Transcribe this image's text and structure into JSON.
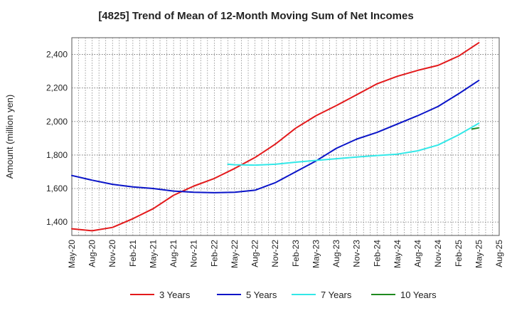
{
  "chart_data": {
    "type": "line",
    "title": "[4825]  Trend of Mean of 12-Month Moving Sum of Net Incomes",
    "xlabel": "",
    "ylabel": "Amount (million yen)",
    "ylim": [
      1320,
      2500
    ],
    "yticks": [
      1400,
      1600,
      1800,
      2000,
      2200,
      2400
    ],
    "ytick_labels": [
      "1,400",
      "1,600",
      "1,800",
      "2,000",
      "2,200",
      "2,400"
    ],
    "xlim": [
      "2020-05",
      "2025-08"
    ],
    "xticks": [
      "2020-05",
      "2020-08",
      "2020-11",
      "2021-02",
      "2021-05",
      "2021-08",
      "2021-11",
      "2022-02",
      "2022-05",
      "2022-08",
      "2022-11",
      "2023-02",
      "2023-05",
      "2023-08",
      "2023-11",
      "2024-02",
      "2024-05",
      "2024-08",
      "2024-11",
      "2025-02",
      "2025-05",
      "2025-08"
    ],
    "xtick_labels": [
      "May-20",
      "Aug-20",
      "Nov-20",
      "Feb-21",
      "May-21",
      "Aug-21",
      "Nov-21",
      "Feb-22",
      "May-22",
      "Aug-22",
      "Nov-22",
      "Feb-23",
      "May-23",
      "Aug-23",
      "Nov-23",
      "Feb-24",
      "May-24",
      "Aug-24",
      "Nov-24",
      "Feb-25",
      "May-25",
      "Aug-25"
    ],
    "grid": true,
    "legend_position": "bottom",
    "series": [
      {
        "name": "3 Years",
        "color": "#e31a1c",
        "points": [
          [
            "2020-05",
            1360
          ],
          [
            "2020-08",
            1348
          ],
          [
            "2020-11",
            1368
          ],
          [
            "2021-02",
            1420
          ],
          [
            "2021-05",
            1480
          ],
          [
            "2021-08",
            1560
          ],
          [
            "2021-11",
            1615
          ],
          [
            "2022-02",
            1660
          ],
          [
            "2022-05",
            1720
          ],
          [
            "2022-08",
            1785
          ],
          [
            "2022-11",
            1865
          ],
          [
            "2023-02",
            1960
          ],
          [
            "2023-05",
            2035
          ],
          [
            "2023-08",
            2095
          ],
          [
            "2023-11",
            2160
          ],
          [
            "2024-02",
            2225
          ],
          [
            "2024-05",
            2270
          ],
          [
            "2024-08",
            2305
          ],
          [
            "2024-11",
            2335
          ],
          [
            "2025-02",
            2390
          ],
          [
            "2025-05",
            2470
          ]
        ]
      },
      {
        "name": "5 Years",
        "color": "#0a14c8",
        "points": [
          [
            "2020-05",
            1678
          ],
          [
            "2020-08",
            1650
          ],
          [
            "2020-11",
            1625
          ],
          [
            "2021-02",
            1610
          ],
          [
            "2021-05",
            1600
          ],
          [
            "2021-08",
            1585
          ],
          [
            "2021-11",
            1578
          ],
          [
            "2022-02",
            1575
          ],
          [
            "2022-05",
            1578
          ],
          [
            "2022-08",
            1590
          ],
          [
            "2022-11",
            1635
          ],
          [
            "2023-02",
            1700
          ],
          [
            "2023-05",
            1765
          ],
          [
            "2023-08",
            1840
          ],
          [
            "2023-11",
            1895
          ],
          [
            "2024-02",
            1935
          ],
          [
            "2024-05",
            1985
          ],
          [
            "2024-08",
            2035
          ],
          [
            "2024-11",
            2090
          ],
          [
            "2025-02",
            2165
          ],
          [
            "2025-05",
            2245
          ]
        ]
      },
      {
        "name": "7 Years",
        "color": "#33e8e8",
        "points": [
          [
            "2022-04",
            1745
          ],
          [
            "2022-05",
            1742
          ],
          [
            "2022-08",
            1740
          ],
          [
            "2022-11",
            1745
          ],
          [
            "2023-02",
            1757
          ],
          [
            "2023-05",
            1768
          ],
          [
            "2023-08",
            1778
          ],
          [
            "2023-11",
            1788
          ],
          [
            "2024-02",
            1797
          ],
          [
            "2024-05",
            1805
          ],
          [
            "2024-08",
            1825
          ],
          [
            "2024-11",
            1860
          ],
          [
            "2025-02",
            1920
          ],
          [
            "2025-05",
            1990
          ]
        ]
      },
      {
        "name": "10 Years",
        "color": "#1f8a1f",
        "points": [
          [
            "2025-04",
            1955
          ],
          [
            "2025-05",
            1962
          ]
        ]
      }
    ]
  }
}
